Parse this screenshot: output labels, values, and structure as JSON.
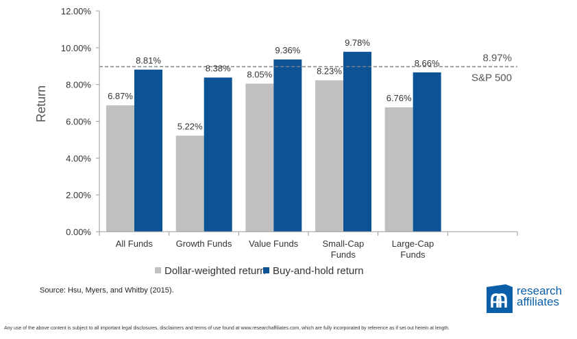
{
  "chart_data": {
    "type": "bar",
    "categories": [
      "All Funds",
      "Growth Funds",
      "Value Funds",
      "Small-Cap Funds",
      "Large-Cap Funds"
    ],
    "category_lines": [
      [
        "All Funds"
      ],
      [
        "Growth Funds"
      ],
      [
        "Value Funds"
      ],
      [
        "Small-Cap",
        "Funds"
      ],
      [
        "Large-Cap",
        "Funds"
      ]
    ],
    "series": [
      {
        "name": "Dollar-weighted return",
        "values": [
          6.87,
          5.22,
          8.05,
          8.23,
          6.76
        ],
        "color": "#c0c0c0"
      },
      {
        "name": "Buy-and-hold return",
        "values": [
          8.81,
          8.38,
          9.36,
          9.78,
          8.66
        ],
        "color": "#0b5394"
      }
    ],
    "data_labels": [
      [
        "6.87%",
        "5.22%",
        "8.05%",
        "8.23%",
        "6.76%"
      ],
      [
        "8.81%",
        "8.38%",
        "9.36%",
        "9.78%",
        "8.66%"
      ]
    ],
    "ylabel": "Return",
    "ylim": [
      0,
      12
    ],
    "yticks": [
      0,
      2,
      4,
      6,
      8,
      10,
      12
    ],
    "ytick_labels": [
      "0.00%",
      "2.00%",
      "4.00%",
      "6.00%",
      "8.00%",
      "10.00%",
      "12.00%"
    ],
    "reference_line": {
      "value": 8.97,
      "value_label": "8.97%",
      "label": "S&P 500",
      "color": "#808080"
    },
    "legend_position": "bottom",
    "grid": false
  },
  "source": "Source: Hsu, Myers, and Whitby (2015).",
  "logo": {
    "line1": "research",
    "line2": "affiliates",
    "color": "#0b5ea8"
  },
  "disclaimer": "Any use of the above content is subject to all important legal disclosures, disclaimers and terms of use found at www.researchaffiliates.com, which are fully incorporated by reference as if set out herein at length."
}
